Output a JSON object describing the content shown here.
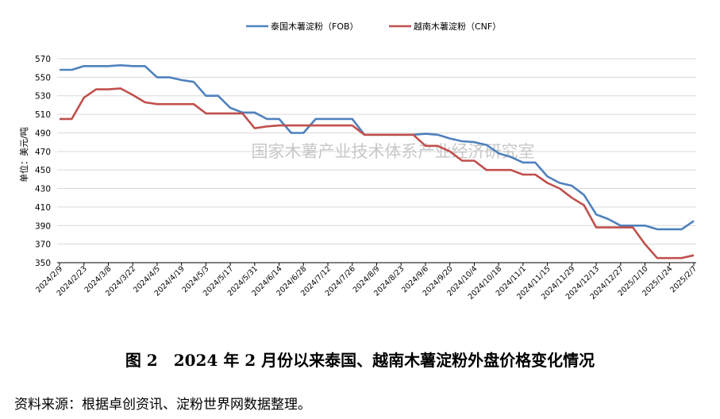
{
  "caption": "图 2　2024 年 2 月份以来泰国、越南木薯淀粉外盘价格变化情况",
  "source_note": "资料来源：根据卓创资讯、淀粉世界网数据整理。",
  "watermark": "国家木薯产业技术体系产业经济研究室",
  "colors": {
    "series1": "#4F81BD",
    "series2": "#C0504D",
    "grid": "#D9D9D9",
    "axis": "#000000"
  },
  "chart_data": {
    "type": "line",
    "title": "",
    "xlabel": "",
    "ylabel": "单位：美元/吨",
    "ylim": [
      350,
      570
    ],
    "yticks": [
      350,
      370,
      390,
      410,
      430,
      450,
      470,
      490,
      510,
      530,
      550,
      570
    ],
    "grid": true,
    "legend_position": "top-center",
    "x": [
      "2024/2/9",
      "2024/2/16",
      "2024/2/23",
      "2024/3/1",
      "2024/3/8",
      "2024/3/15",
      "2024/3/22",
      "2024/3/29",
      "2024/4/5",
      "2024/4/12",
      "2024/4/19",
      "2024/4/26",
      "2024/5/3",
      "2024/5/10",
      "2024/5/17",
      "2024/5/24",
      "2024/5/31",
      "2024/6/7",
      "2024/6/14",
      "2024/6/21",
      "2024/6/28",
      "2024/7/5",
      "2024/7/12",
      "2024/7/19",
      "2024/7/26",
      "2024/8/2",
      "2024/8/9",
      "2024/8/16",
      "2024/8/23",
      "2024/8/30",
      "2024/9/6",
      "2024/9/13",
      "2024/9/20",
      "2024/9/27",
      "2024/10/4",
      "2024/10/11",
      "2024/10/18",
      "2024/10/25",
      "2024/11/1",
      "2024/11/8",
      "2024/11/15",
      "2024/11/22",
      "2024/11/29",
      "2024/12/6",
      "2024/12/13",
      "2024/12/20",
      "2024/12/27",
      "2025/1/3",
      "2025/1/10",
      "2025/1/17",
      "2025/1/24",
      "2025/1/31",
      "2025/2/7"
    ],
    "x_tick_labels": [
      "2024/2/9",
      "2024/2/23",
      "2024/3/8",
      "2024/3/22",
      "2024/4/5",
      "2024/4/19",
      "2024/5/3",
      "2024/5/17",
      "2024/5/31",
      "2024/6/14",
      "2024/6/28",
      "2024/7/12",
      "2024/7/26",
      "2024/8/9",
      "2024/8/23",
      "2024/9/6",
      "2024/9/20",
      "2024/10/4",
      "2024/10/18",
      "2024/11/1",
      "2024/11/15",
      "2024/11/29",
      "2024/12/13",
      "2024/12/27",
      "2025/1/10",
      "2025/1/24",
      "2025/2/7"
    ],
    "series": [
      {
        "name": "泰国木薯淀粉（FOB）",
        "values": [
          558,
          558,
          562,
          562,
          562,
          563,
          562,
          562,
          550,
          550,
          547,
          545,
          530,
          530,
          517,
          512,
          512,
          505,
          505,
          490,
          490,
          505,
          505,
          505,
          505,
          488,
          488,
          488,
          488,
          488,
          489,
          488,
          484,
          481,
          480,
          477,
          468,
          464,
          458,
          458,
          443,
          436,
          433,
          423,
          402,
          397,
          390,
          390,
          390,
          386,
          386,
          386,
          395
        ]
      },
      {
        "name": "越南木薯淀粉（CNF）",
        "values": [
          505,
          505,
          528,
          537,
          537,
          538,
          531,
          523,
          521,
          521,
          521,
          521,
          511,
          511,
          511,
          511,
          495,
          497,
          498,
          498,
          498,
          498,
          498,
          498,
          498,
          488,
          488,
          488,
          488,
          488,
          476,
          476,
          470,
          460,
          460,
          450,
          450,
          450,
          445,
          445,
          436,
          430,
          420,
          412,
          388,
          388,
          388,
          388,
          370,
          355,
          355,
          355,
          358
        ]
      }
    ]
  }
}
